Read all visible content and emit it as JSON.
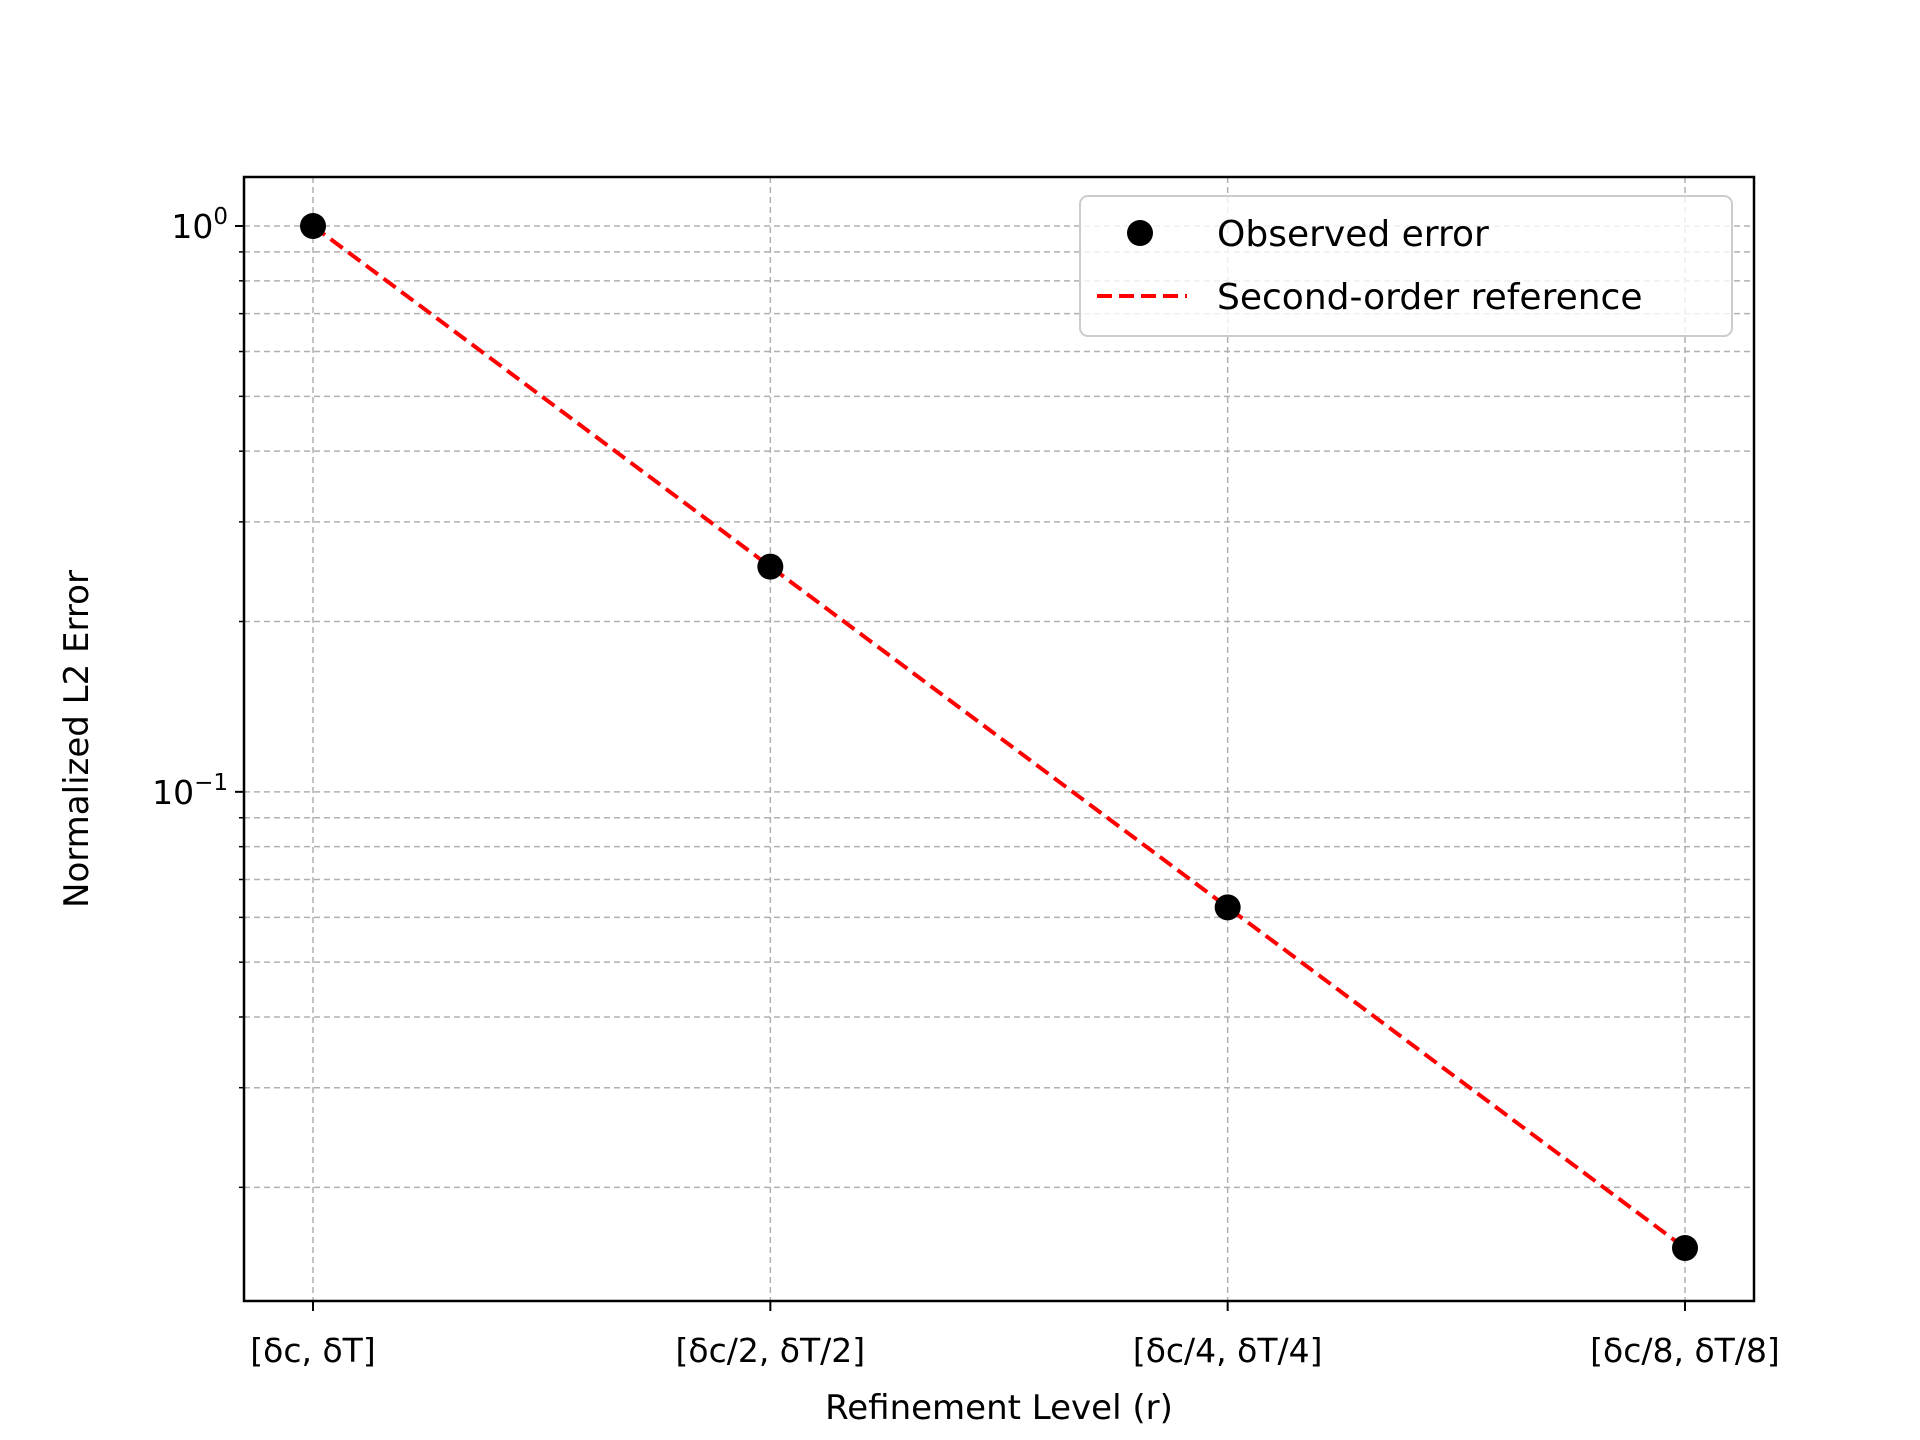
{
  "chart_data": {
    "type": "line",
    "title": "",
    "xlabel": "Refinement Level (r)",
    "ylabel": "Normalized L2 Error",
    "yscale": "log",
    "ylim": [
      0.0125,
      1.0
    ],
    "categories": [
      "[δc, δT]",
      "[δc/2, δT/2]",
      "[δc/4, δT/4]",
      "[δc/8, δT/8]"
    ],
    "y_tick_labels": [
      {
        "value": 1.0,
        "base": "10",
        "exp": "0"
      },
      {
        "value": 0.1,
        "base": "10",
        "exp": "−1"
      }
    ],
    "grid": true,
    "legend_position": "upper right",
    "series": [
      {
        "name": "Observed error",
        "style": "markers",
        "color": "#000000",
        "values": [
          1.0,
          0.25,
          0.0625,
          0.015625
        ]
      },
      {
        "name": "Second-order reference",
        "style": "dashed-line",
        "color": "#ff0000",
        "values": [
          1.0,
          0.25,
          0.0625,
          0.015625
        ]
      }
    ]
  }
}
